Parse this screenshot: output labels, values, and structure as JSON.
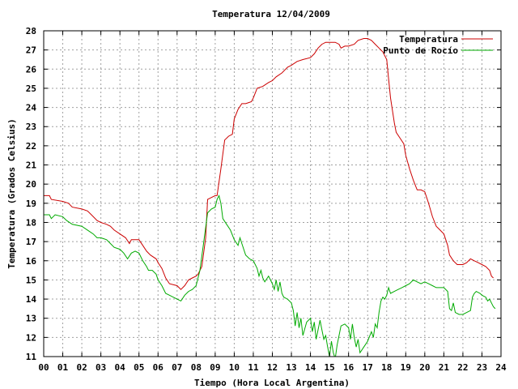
{
  "chart_data": {
    "type": "line",
    "title": "Temperatura 12/04/2009",
    "xlabel": "Tiempo (Hora Local Argentina)",
    "ylabel": "Temperatura (Grados Celsius)",
    "xlim": [
      0,
      24
    ],
    "ylim": [
      11,
      28
    ],
    "x_ticks": [
      0,
      1,
      2,
      3,
      4,
      5,
      6,
      7,
      8,
      9,
      10,
      11,
      12,
      13,
      14,
      15,
      16,
      17,
      18,
      19,
      20,
      21,
      22,
      23,
      24
    ],
    "x_tick_labels": [
      "00",
      "01",
      "02",
      "03",
      "04",
      "05",
      "06",
      "07",
      "08",
      "09",
      "10",
      "11",
      "12",
      "13",
      "14",
      "15",
      "16",
      "17",
      "18",
      "19",
      "20",
      "21",
      "22",
      "23",
      "24"
    ],
    "y_ticks": [
      11,
      12,
      13,
      14,
      15,
      16,
      17,
      18,
      19,
      20,
      21,
      22,
      23,
      24,
      25,
      26,
      27,
      28
    ],
    "grid": true,
    "legend_position": "top-right",
    "series": [
      {
        "name": "Temperatura",
        "color": "#cc0000",
        "points": [
          [
            0,
            19.4
          ],
          [
            0.3,
            19.4
          ],
          [
            0.4,
            19.2
          ],
          [
            1.0,
            19.1
          ],
          [
            1.3,
            19.0
          ],
          [
            1.5,
            18.8
          ],
          [
            2.0,
            18.7
          ],
          [
            2.3,
            18.6
          ],
          [
            2.5,
            18.4
          ],
          [
            2.8,
            18.1
          ],
          [
            3.0,
            18.0
          ],
          [
            3.3,
            17.9
          ],
          [
            3.5,
            17.8
          ],
          [
            3.7,
            17.6
          ],
          [
            4.0,
            17.4
          ],
          [
            4.3,
            17.2
          ],
          [
            4.5,
            16.9
          ],
          [
            4.6,
            17.1
          ],
          [
            5.0,
            17.1
          ],
          [
            5.2,
            16.8
          ],
          [
            5.4,
            16.5
          ],
          [
            5.6,
            16.3
          ],
          [
            5.9,
            16.1
          ],
          [
            6.0,
            15.9
          ],
          [
            6.2,
            15.6
          ],
          [
            6.4,
            15.1
          ],
          [
            6.6,
            14.8
          ],
          [
            7.0,
            14.7
          ],
          [
            7.2,
            14.5
          ],
          [
            7.4,
            14.7
          ],
          [
            7.6,
            15.0
          ],
          [
            7.8,
            15.1
          ],
          [
            8.0,
            15.2
          ],
          [
            8.1,
            15.3
          ],
          [
            8.3,
            15.7
          ],
          [
            8.5,
            17.2
          ],
          [
            8.6,
            19.2
          ],
          [
            8.8,
            19.3
          ],
          [
            9.0,
            19.4
          ],
          [
            9.1,
            19.4
          ],
          [
            9.3,
            20.8
          ],
          [
            9.5,
            22.3
          ],
          [
            9.7,
            22.5
          ],
          [
            9.9,
            22.6
          ],
          [
            10.0,
            23.4
          ],
          [
            10.2,
            23.9
          ],
          [
            10.4,
            24.2
          ],
          [
            10.6,
            24.2
          ],
          [
            10.9,
            24.3
          ],
          [
            11.0,
            24.5
          ],
          [
            11.2,
            25.0
          ],
          [
            11.5,
            25.1
          ],
          [
            11.8,
            25.3
          ],
          [
            12.0,
            25.4
          ],
          [
            12.2,
            25.6
          ],
          [
            12.5,
            25.8
          ],
          [
            12.8,
            26.1
          ],
          [
            13.0,
            26.2
          ],
          [
            13.3,
            26.4
          ],
          [
            13.6,
            26.5
          ],
          [
            14.0,
            26.6
          ],
          [
            14.2,
            26.8
          ],
          [
            14.4,
            27.1
          ],
          [
            14.6,
            27.3
          ],
          [
            14.8,
            27.4
          ],
          [
            15.0,
            27.4
          ],
          [
            15.3,
            27.4
          ],
          [
            15.5,
            27.3
          ],
          [
            15.6,
            27.1
          ],
          [
            15.8,
            27.2
          ],
          [
            16.0,
            27.2
          ],
          [
            16.3,
            27.3
          ],
          [
            16.5,
            27.5
          ],
          [
            16.8,
            27.6
          ],
          [
            17.0,
            27.6
          ],
          [
            17.2,
            27.5
          ],
          [
            17.4,
            27.3
          ],
          [
            17.6,
            27.1
          ],
          [
            17.8,
            26.9
          ],
          [
            18.0,
            26.5
          ],
          [
            18.1,
            25.5
          ],
          [
            18.2,
            24.5
          ],
          [
            18.4,
            23.2
          ],
          [
            18.5,
            22.7
          ],
          [
            18.7,
            22.4
          ],
          [
            18.9,
            22.1
          ],
          [
            19.0,
            21.5
          ],
          [
            19.2,
            20.8
          ],
          [
            19.4,
            20.2
          ],
          [
            19.6,
            19.7
          ],
          [
            19.8,
            19.7
          ],
          [
            20.0,
            19.6
          ],
          [
            20.2,
            19.0
          ],
          [
            20.4,
            18.3
          ],
          [
            20.6,
            17.8
          ],
          [
            20.8,
            17.6
          ],
          [
            21.0,
            17.4
          ],
          [
            21.2,
            16.8
          ],
          [
            21.3,
            16.3
          ],
          [
            21.5,
            16.0
          ],
          [
            21.7,
            15.8
          ],
          [
            22.0,
            15.8
          ],
          [
            22.2,
            15.9
          ],
          [
            22.4,
            16.1
          ],
          [
            22.6,
            16.0
          ],
          [
            22.8,
            15.9
          ],
          [
            23.0,
            15.8
          ],
          [
            23.2,
            15.7
          ],
          [
            23.4,
            15.5
          ],
          [
            23.5,
            15.2
          ],
          [
            23.6,
            15.1
          ]
        ]
      },
      {
        "name": "Punto de Rocío",
        "color": "#00aa00",
        "points": [
          [
            0,
            18.4
          ],
          [
            0.3,
            18.4
          ],
          [
            0.4,
            18.2
          ],
          [
            0.6,
            18.4
          ],
          [
            1.0,
            18.3
          ],
          [
            1.2,
            18.1
          ],
          [
            1.5,
            17.9
          ],
          [
            2.0,
            17.8
          ],
          [
            2.3,
            17.6
          ],
          [
            2.6,
            17.4
          ],
          [
            2.8,
            17.2
          ],
          [
            3.0,
            17.2
          ],
          [
            3.3,
            17.1
          ],
          [
            3.5,
            16.9
          ],
          [
            3.7,
            16.7
          ],
          [
            4.0,
            16.6
          ],
          [
            4.2,
            16.4
          ],
          [
            4.4,
            16.1
          ],
          [
            4.6,
            16.4
          ],
          [
            4.8,
            16.5
          ],
          [
            5.0,
            16.4
          ],
          [
            5.2,
            16.0
          ],
          [
            5.4,
            15.7
          ],
          [
            5.5,
            15.5
          ],
          [
            5.7,
            15.5
          ],
          [
            5.9,
            15.3
          ],
          [
            6.0,
            15.0
          ],
          [
            6.2,
            14.7
          ],
          [
            6.4,
            14.3
          ],
          [
            6.6,
            14.2
          ],
          [
            6.8,
            14.1
          ],
          [
            7.0,
            14.0
          ],
          [
            7.2,
            13.9
          ],
          [
            7.4,
            14.2
          ],
          [
            7.6,
            14.4
          ],
          [
            7.8,
            14.5
          ],
          [
            8.0,
            14.7
          ],
          [
            8.2,
            15.5
          ],
          [
            8.4,
            17.0
          ],
          [
            8.6,
            18.5
          ],
          [
            8.8,
            18.7
          ],
          [
            9.0,
            18.8
          ],
          [
            9.1,
            19.2
          ],
          [
            9.2,
            19.4
          ],
          [
            9.3,
            19.0
          ],
          [
            9.4,
            18.2
          ],
          [
            9.6,
            17.9
          ],
          [
            9.8,
            17.6
          ],
          [
            10.0,
            17.1
          ],
          [
            10.2,
            16.8
          ],
          [
            10.3,
            17.2
          ],
          [
            10.4,
            16.9
          ],
          [
            10.6,
            16.3
          ],
          [
            10.8,
            16.1
          ],
          [
            11.0,
            16.0
          ],
          [
            11.2,
            15.6
          ],
          [
            11.3,
            15.2
          ],
          [
            11.4,
            15.5
          ],
          [
            11.5,
            15.1
          ],
          [
            11.6,
            14.9
          ],
          [
            11.8,
            15.2
          ],
          [
            12.0,
            14.8
          ],
          [
            12.1,
            14.5
          ],
          [
            12.2,
            15.0
          ],
          [
            12.3,
            14.4
          ],
          [
            12.4,
            14.9
          ],
          [
            12.5,
            14.3
          ],
          [
            12.6,
            14.1
          ],
          [
            12.8,
            14.0
          ],
          [
            13.0,
            13.8
          ],
          [
            13.1,
            13.4
          ],
          [
            13.2,
            12.6
          ],
          [
            13.3,
            13.3
          ],
          [
            13.4,
            12.5
          ],
          [
            13.5,
            13.0
          ],
          [
            13.6,
            12.1
          ],
          [
            13.8,
            12.8
          ],
          [
            14.0,
            13.0
          ],
          [
            14.1,
            12.3
          ],
          [
            14.2,
            12.8
          ],
          [
            14.3,
            11.9
          ],
          [
            14.5,
            12.9
          ],
          [
            14.6,
            12.4
          ],
          [
            14.7,
            11.9
          ],
          [
            14.8,
            12.1
          ],
          [
            14.9,
            11.5
          ],
          [
            15.0,
            11.0
          ],
          [
            15.1,
            11.8
          ],
          [
            15.2,
            11.2
          ],
          [
            15.3,
            10.9
          ],
          [
            15.4,
            11.6
          ],
          [
            15.5,
            12.1
          ],
          [
            15.6,
            12.6
          ],
          [
            15.8,
            12.7
          ],
          [
            16.0,
            12.5
          ],
          [
            16.1,
            11.9
          ],
          [
            16.2,
            12.7
          ],
          [
            16.3,
            12.0
          ],
          [
            16.4,
            11.5
          ],
          [
            16.5,
            11.9
          ],
          [
            16.6,
            11.2
          ],
          [
            16.8,
            11.5
          ],
          [
            17.0,
            11.8
          ],
          [
            17.2,
            12.3
          ],
          [
            17.3,
            12.0
          ],
          [
            17.4,
            12.7
          ],
          [
            17.5,
            12.5
          ],
          [
            17.6,
            13.3
          ],
          [
            17.7,
            13.9
          ],
          [
            17.8,
            14.1
          ],
          [
            17.9,
            14.0
          ],
          [
            18.0,
            14.2
          ],
          [
            18.1,
            14.6
          ],
          [
            18.2,
            14.3
          ],
          [
            18.4,
            14.4
          ],
          [
            18.6,
            14.5
          ],
          [
            18.8,
            14.6
          ],
          [
            19.0,
            14.7
          ],
          [
            19.2,
            14.8
          ],
          [
            19.4,
            15.0
          ],
          [
            19.6,
            14.9
          ],
          [
            19.8,
            14.8
          ],
          [
            20.0,
            14.9
          ],
          [
            20.2,
            14.8
          ],
          [
            20.4,
            14.7
          ],
          [
            20.6,
            14.6
          ],
          [
            20.8,
            14.6
          ],
          [
            21.0,
            14.6
          ],
          [
            21.2,
            14.4
          ],
          [
            21.3,
            13.5
          ],
          [
            21.4,
            13.4
          ],
          [
            21.5,
            13.8
          ],
          [
            21.6,
            13.3
          ],
          [
            21.8,
            13.2
          ],
          [
            22.0,
            13.2
          ],
          [
            22.2,
            13.3
          ],
          [
            22.4,
            13.4
          ],
          [
            22.5,
            14.1
          ],
          [
            22.6,
            14.3
          ],
          [
            22.7,
            14.4
          ],
          [
            22.9,
            14.3
          ],
          [
            23.0,
            14.2
          ],
          [
            23.2,
            14.1
          ],
          [
            23.3,
            13.9
          ],
          [
            23.4,
            14.0
          ],
          [
            23.5,
            13.8
          ],
          [
            23.6,
            13.6
          ],
          [
            23.7,
            13.5
          ]
        ]
      }
    ]
  }
}
